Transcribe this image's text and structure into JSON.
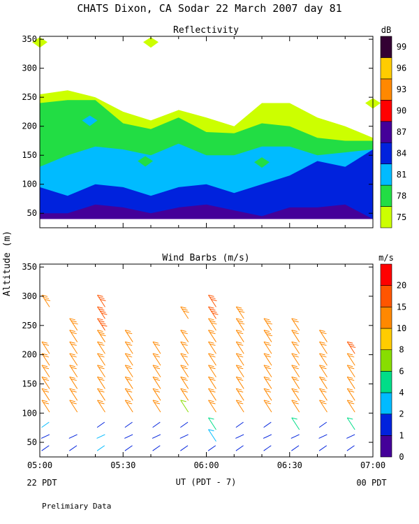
{
  "header": {
    "title": "CHATS Dixon, CA  Sodar  22 March 2007  day  81",
    "y_axis_label": "Altitude (m)",
    "x_axis_label": "UT  (PDT - 7)",
    "left_date": "22 PDT",
    "right_date": "00 PDT",
    "footnote": "Prelimiary Data"
  },
  "colors": {
    "reflectivity": [
      "#ccff00",
      "#22dd44",
      "#00bbff",
      "#0022dd",
      "#440099",
      "#ff0000",
      "#ff8800",
      "#ffcc00",
      "#330033"
    ],
    "wind": [
      "#440099",
      "#0022dd",
      "#00bbff",
      "#00dd88",
      "#88dd00",
      "#ffcc00",
      "#ff8800",
      "#ff5500",
      "#ff0000"
    ]
  },
  "chart_data": [
    {
      "type": "area",
      "title": "Reflectivity",
      "xlabel": "UT  (PDT - 7)",
      "ylabel": "Altitude (m)",
      "x_ticks": [
        "05:00",
        "05:30",
        "06:00",
        "06:30",
        "07:00"
      ],
      "x_range": [
        "05:00",
        "07:00"
      ],
      "ylim": [
        25,
        355
      ],
      "y_ticks": [
        50,
        100,
        150,
        200,
        250,
        300,
        350
      ],
      "colorbar": {
        "label": "dB",
        "levels": [
          75,
          78,
          81,
          84,
          87,
          90,
          93,
          96,
          99
        ]
      },
      "x": [
        "05:00",
        "05:10",
        "05:20",
        "05:30",
        "05:40",
        "05:50",
        "06:00",
        "06:10",
        "06:20",
        "06:30",
        "06:40",
        "06:50",
        "07:00"
      ],
      "layer_tops": [
        {
          "level": 75,
          "values": [
            255,
            262,
            250,
            225,
            210,
            228,
            215,
            200,
            240,
            240,
            215,
            200,
            180
          ]
        },
        {
          "level": 78,
          "values": [
            240,
            245,
            245,
            205,
            195,
            215,
            190,
            188,
            205,
            200,
            180,
            175,
            175
          ]
        },
        {
          "level": 81,
          "values": [
            130,
            150,
            165,
            160,
            150,
            170,
            150,
            150,
            165,
            165,
            150,
            155,
            160
          ]
        },
        {
          "level": 84,
          "values": [
            95,
            80,
            100,
            95,
            80,
            95,
            100,
            85,
            100,
            115,
            140,
            130,
            160
          ]
        },
        {
          "level": 87,
          "values": [
            50,
            50,
            65,
            60,
            50,
            60,
            65,
            55,
            45,
            60,
            60,
            65,
            40
          ]
        }
      ],
      "patches": [
        {
          "level": 75,
          "x": "05:00",
          "y": 345
        },
        {
          "level": 75,
          "x": "05:40",
          "y": 345
        },
        {
          "level": 75,
          "x": "07:00",
          "y": 240
        },
        {
          "level": 81,
          "x": "05:18",
          "y": 210
        },
        {
          "level": 78,
          "x": "05:38",
          "y": 140
        },
        {
          "level": 78,
          "x": "06:20",
          "y": 138
        }
      ]
    },
    {
      "type": "scatter",
      "title": "Wind Barbs (m/s)",
      "xlabel": "UT  (PDT - 7)",
      "ylabel": "Altitude (m)",
      "x_ticks": [
        "05:00",
        "05:30",
        "06:00",
        "06:30",
        "07:00"
      ],
      "ylim": [
        25,
        355
      ],
      "y_ticks": [
        50,
        100,
        150,
        200,
        250,
        300,
        350
      ],
      "colorbar": {
        "label": "m/s",
        "levels": [
          0,
          1,
          2,
          4,
          6,
          8,
          10,
          15,
          20
        ]
      },
      "times": [
        "05:02",
        "05:12",
        "05:22",
        "05:32",
        "05:42",
        "05:52",
        "06:02",
        "06:12",
        "06:22",
        "06:32",
        "06:42",
        "06:52"
      ],
      "altitudes": [
        40,
        60,
        80,
        110,
        130,
        150,
        170,
        190,
        210,
        230,
        250,
        270,
        290
      ],
      "speed_columns": [
        [
          1.5,
          1.5,
          2.5,
          10,
          10,
          12,
          12,
          12,
          12,
          0,
          0,
          0,
          14
        ],
        [
          1.5,
          1,
          0,
          10,
          10,
          12,
          12,
          12,
          12,
          12,
          14,
          0,
          0
        ],
        [
          2,
          2,
          1,
          10,
          10,
          12,
          12,
          12,
          12,
          14,
          18,
          18,
          16
        ],
        [
          1,
          1,
          1.5,
          10,
          10,
          12,
          12,
          12,
          12,
          12,
          0,
          0,
          0
        ],
        [
          1,
          1,
          1.5,
          10,
          10,
          12,
          12,
          12,
          12,
          0,
          0,
          0,
          0
        ],
        [
          1.5,
          1,
          1,
          6,
          10,
          12,
          12,
          12,
          12,
          12,
          0,
          14,
          0
        ],
        [
          1.5,
          3,
          4,
          10,
          10,
          12,
          12,
          12,
          12,
          12,
          14,
          18,
          16
        ],
        [
          1.5,
          1,
          1,
          10,
          10,
          12,
          12,
          12,
          12,
          12,
          14,
          14,
          0
        ],
        [
          1.5,
          1,
          1,
          10,
          10,
          12,
          12,
          12,
          12,
          14,
          14,
          0,
          0
        ],
        [
          1.5,
          1,
          5,
          10,
          10,
          12,
          12,
          12,
          12,
          12,
          12,
          0,
          0
        ],
        [
          1.5,
          1,
          1.5,
          10,
          10,
          12,
          12,
          12,
          12,
          12,
          0,
          0,
          0
        ],
        [
          1.5,
          1,
          4,
          10,
          10,
          12,
          12,
          12,
          16,
          0,
          0,
          0,
          0
        ]
      ]
    }
  ]
}
